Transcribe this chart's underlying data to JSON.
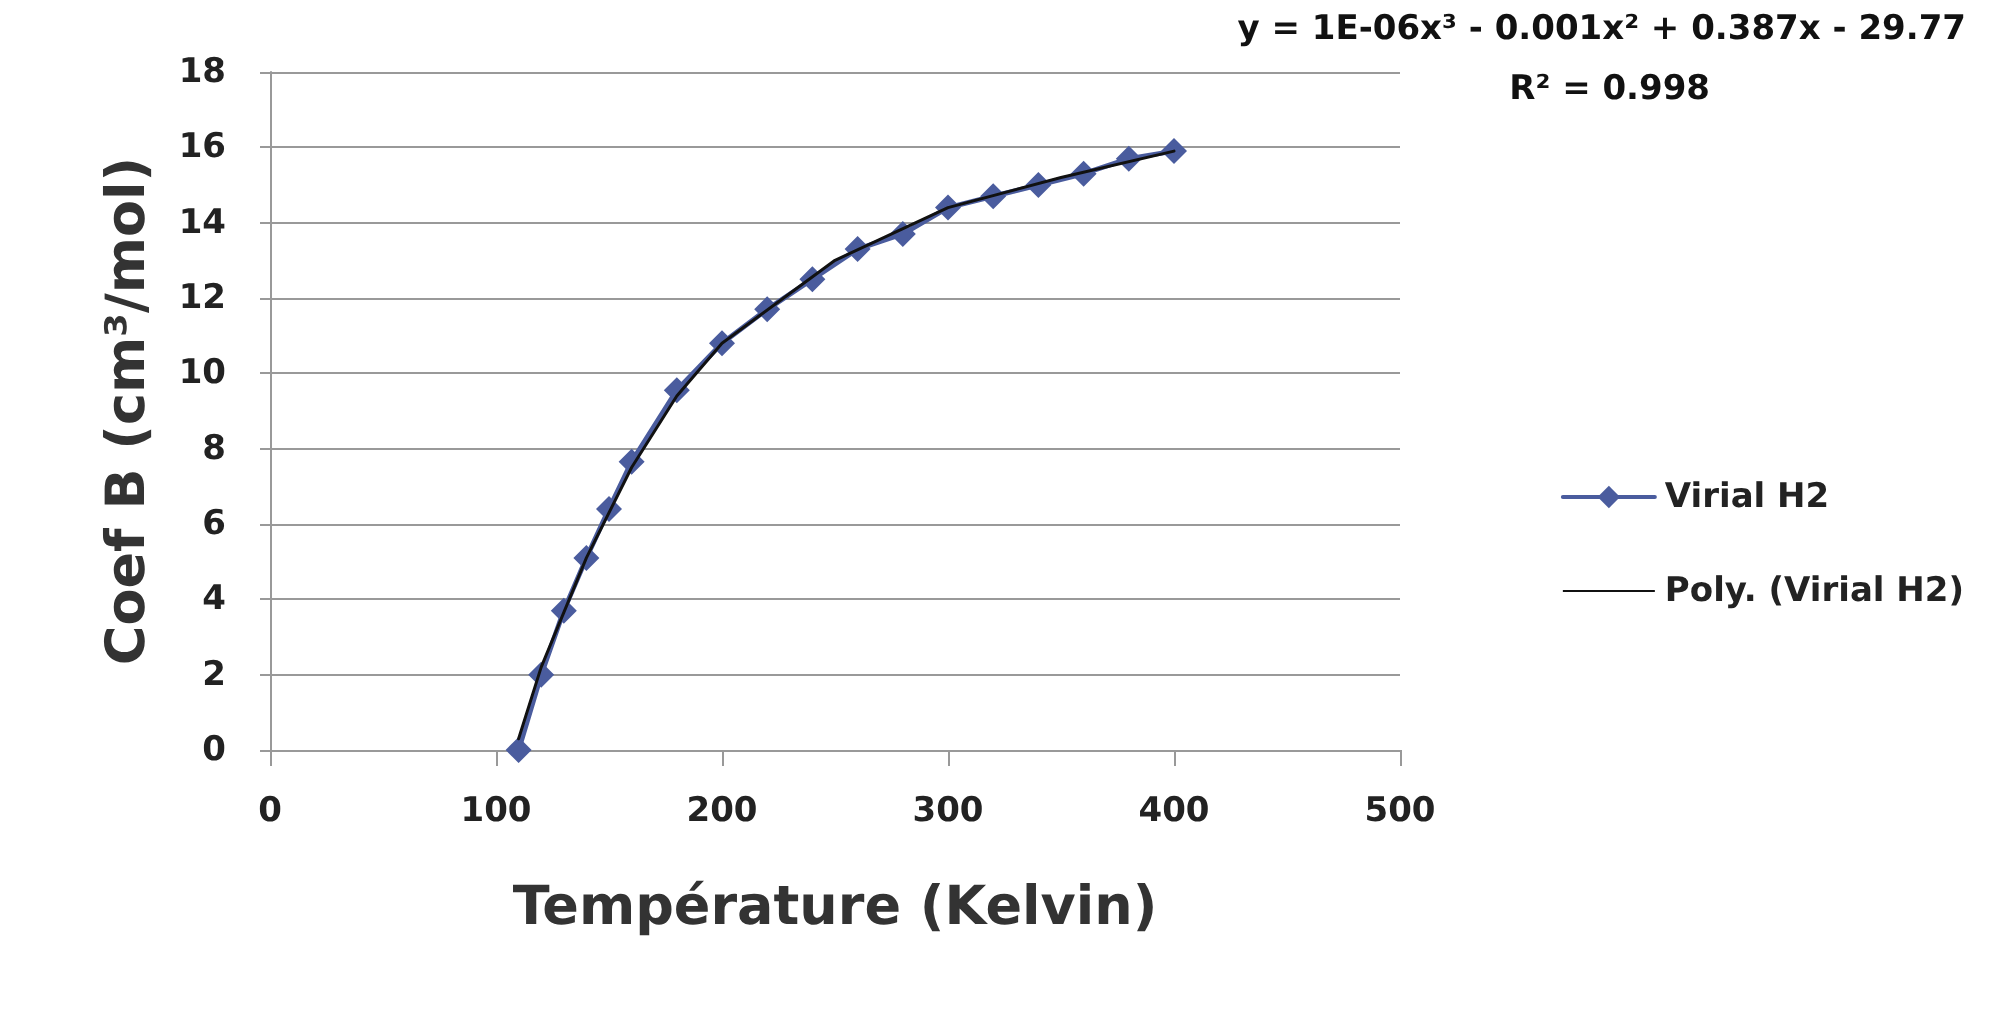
{
  "chart_data": {
    "type": "line",
    "xlabel": "Température (Kelvin)",
    "ylabel": "Coef B (cm³/mol)",
    "annotations": [
      "y = 1E-06x³ - 0.001x² + 0.387x - 29.77",
      "R² = 0.998"
    ],
    "x": [
      110,
      120,
      130,
      140,
      150,
      160,
      180,
      200,
      220,
      240,
      260,
      280,
      300,
      320,
      340,
      360,
      380,
      400
    ],
    "series": [
      {
        "name": "Virial H2",
        "color": "#4a5c9e",
        "marker": "diamond",
        "values": [
          0,
          2.0,
          3.7,
          5.1,
          6.4,
          7.65,
          9.55,
          10.8,
          11.7,
          12.5,
          13.3,
          13.7,
          14.4,
          14.7,
          15.0,
          15.3,
          15.7,
          15.9
        ]
      },
      {
        "name": "Poly. (Virial H2)",
        "color": "#111111",
        "marker": "none",
        "x": [
          110,
          120,
          140,
          160,
          180,
          200,
          250,
          300,
          350,
          400
        ],
        "values": [
          0.3,
          2.2,
          5.1,
          7.5,
          9.4,
          10.8,
          13.0,
          14.4,
          15.2,
          15.9
        ]
      }
    ],
    "xlim": [
      0,
      500
    ],
    "xticks": [
      0,
      100,
      200,
      300,
      400,
      500
    ],
    "ylim": [
      0,
      18
    ],
    "yticks": [
      0,
      2,
      4,
      6,
      8,
      10,
      12,
      14,
      16,
      18
    ],
    "grid": "y",
    "legend": "right",
    "line_style": "solid"
  }
}
